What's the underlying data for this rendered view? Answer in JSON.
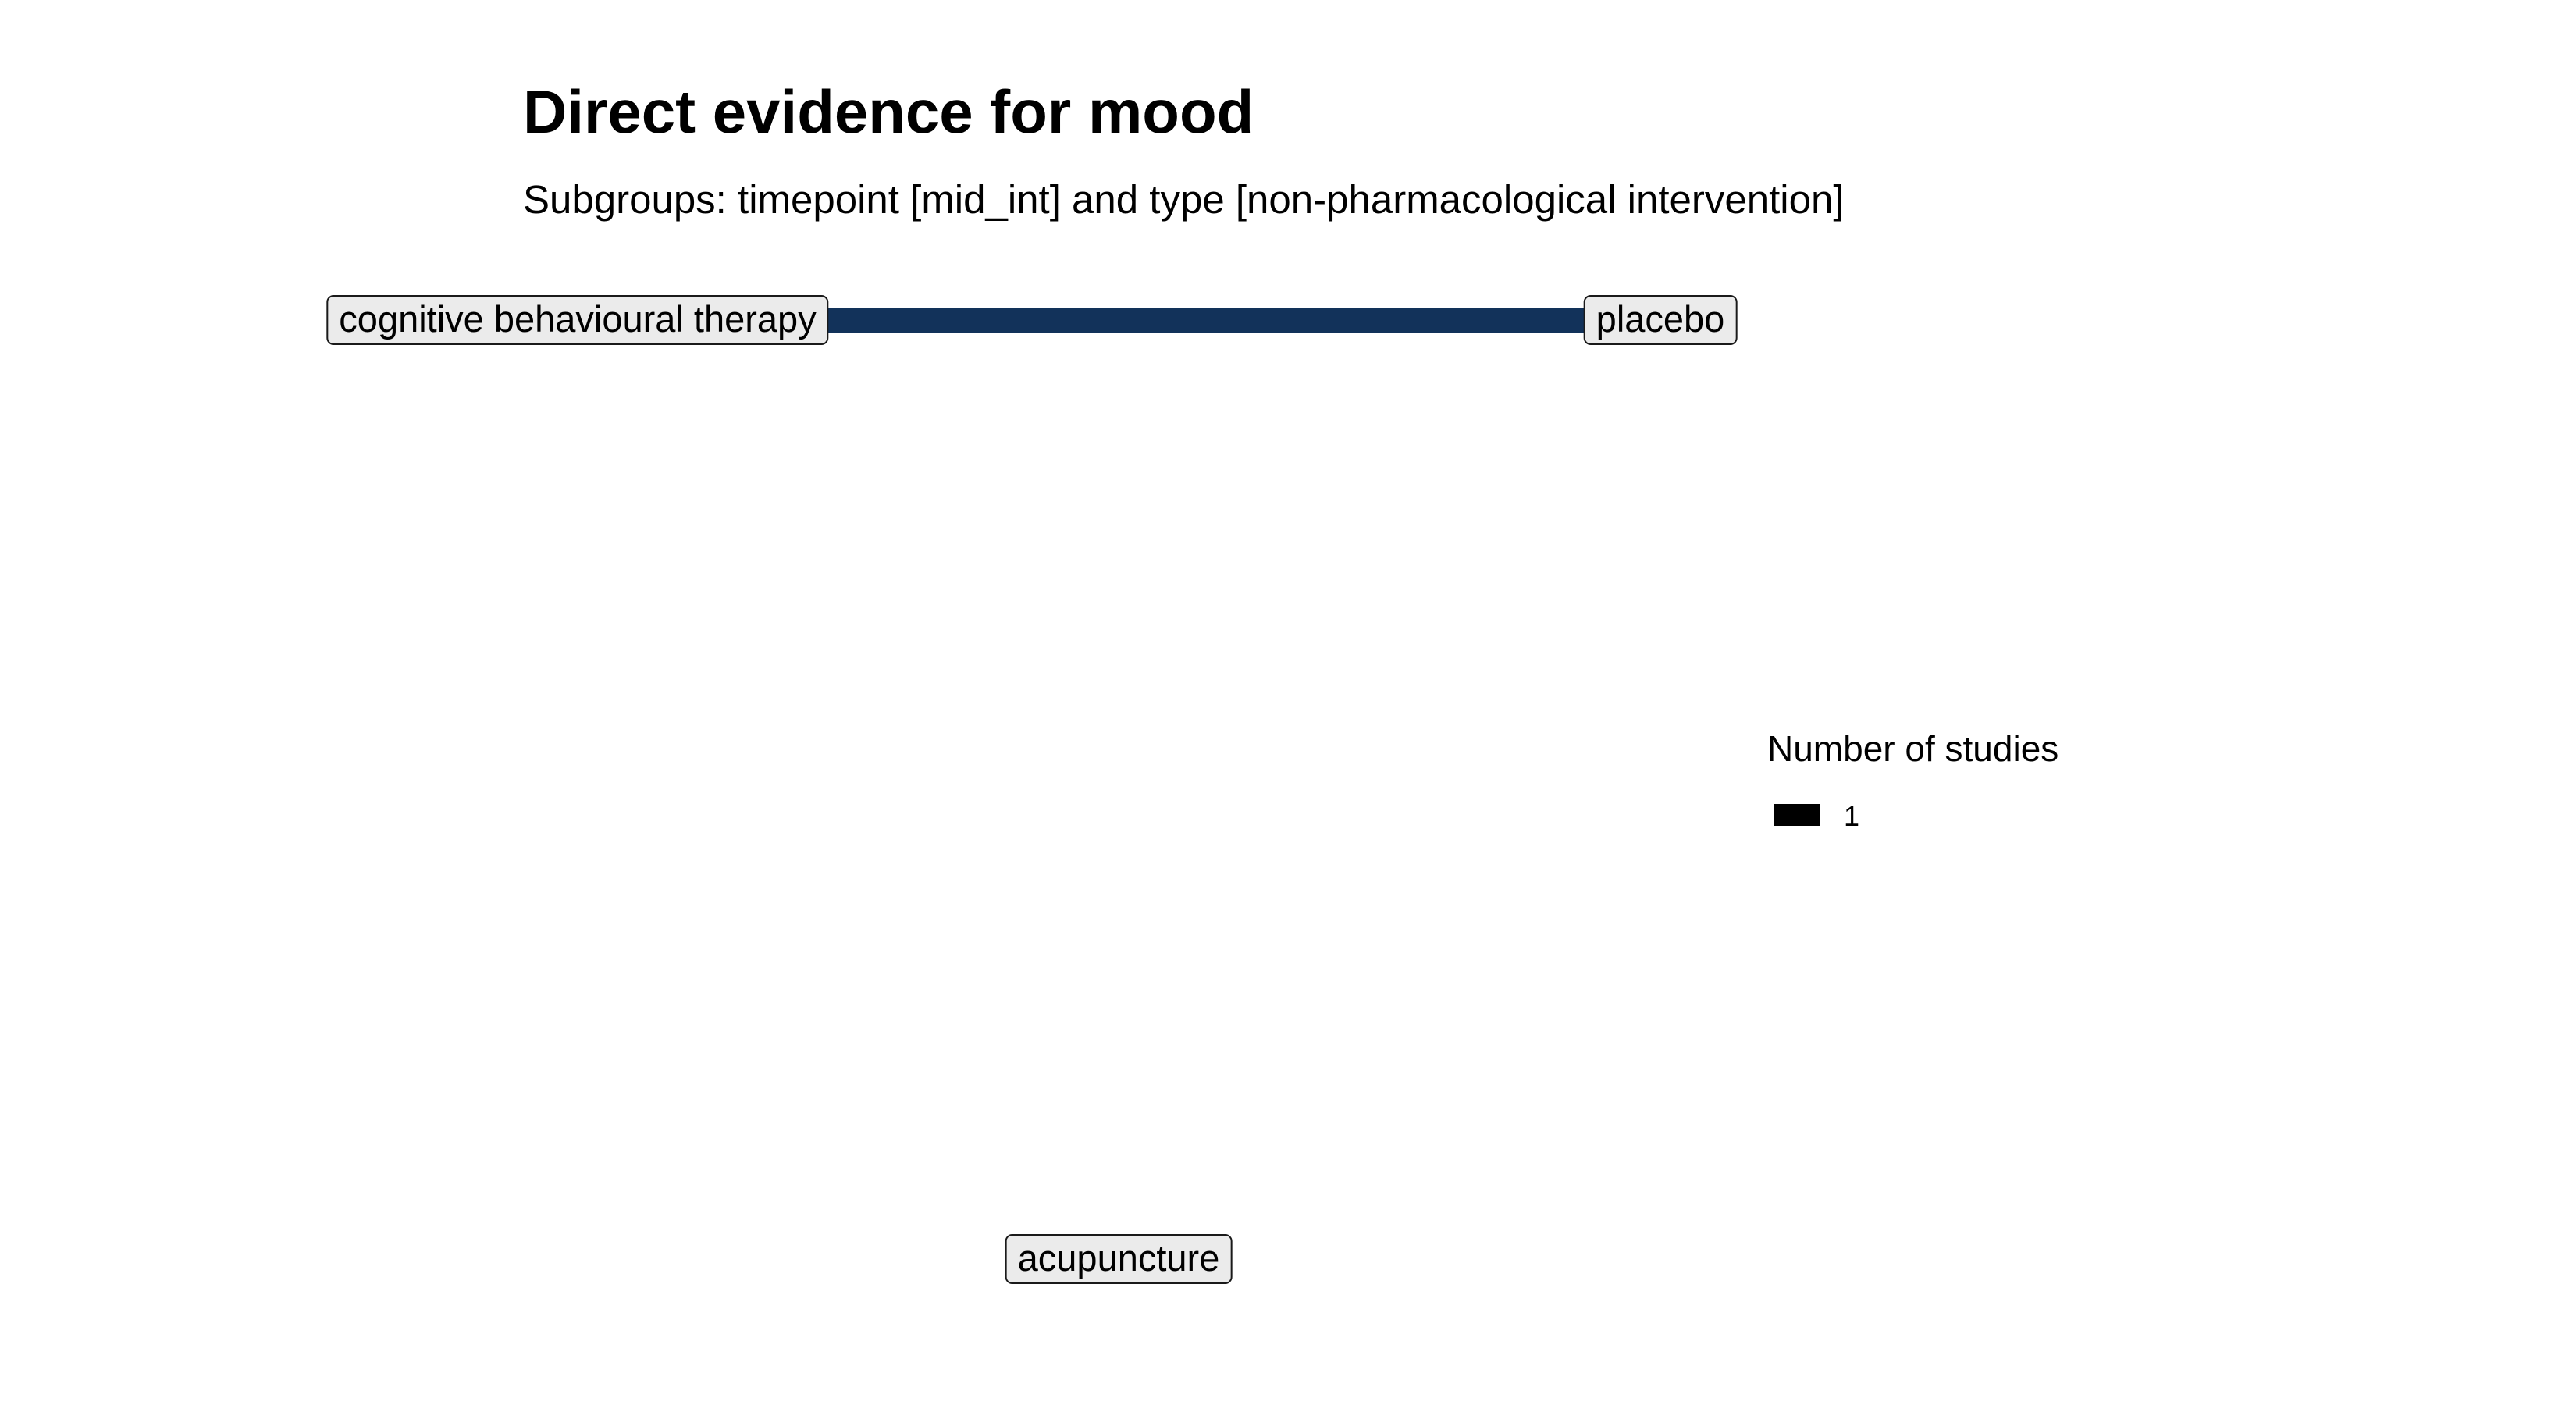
{
  "title": "Direct evidence for mood",
  "subtitle": "Subgroups: timepoint [mid_int] and type [non-pharmacological intervention]",
  "colors": {
    "edge": "#12325a",
    "node_fill": "#ebebeb",
    "node_border": "#1a1a1a",
    "legend_key": "#000000"
  },
  "nodes": [
    {
      "id": "cbt",
      "label": "cognitive behavioural therapy"
    },
    {
      "id": "placebo",
      "label": "placebo"
    },
    {
      "id": "acupuncture",
      "label": "acupuncture"
    }
  ],
  "edges": [
    {
      "from": "cognitive behavioural therapy",
      "to": "placebo",
      "number_of_studies": 1
    }
  ],
  "legend": {
    "title": "Number of studies",
    "entries": [
      {
        "label": "1"
      }
    ]
  }
}
